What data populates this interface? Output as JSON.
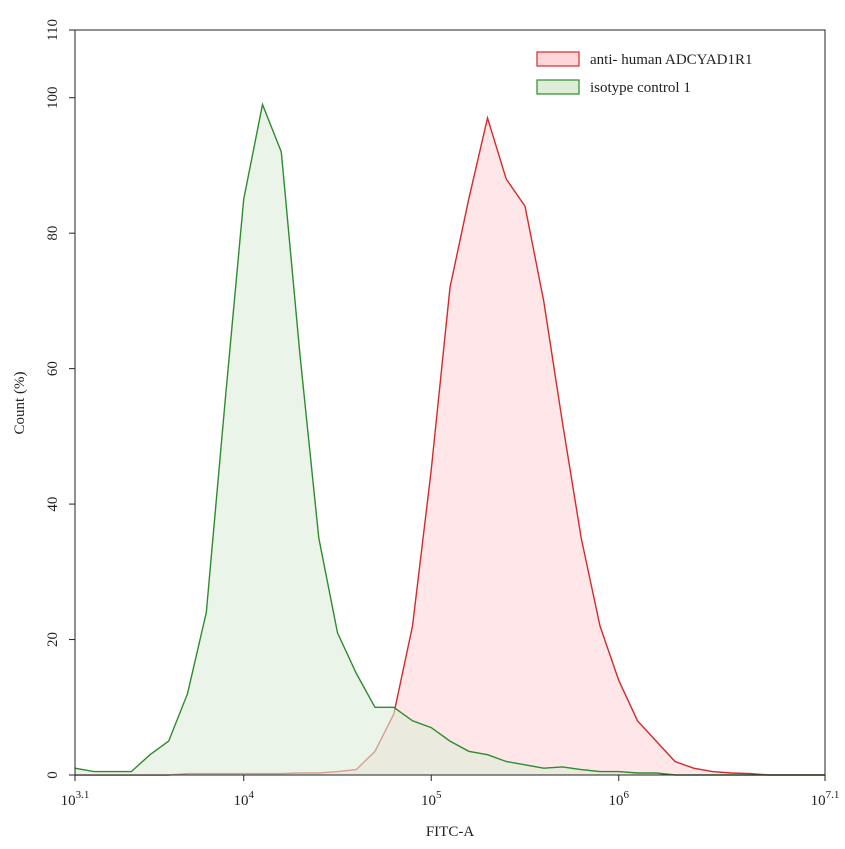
{
  "chart_data": {
    "type": "area",
    "x_label": "FITC-A",
    "y_label": "Count (%)",
    "xscale": "log",
    "xlim": [
      1258.93,
      12589254
    ],
    "xticks": [
      {
        "value": 1258.93,
        "label": "10^3.1"
      },
      {
        "value": 10000,
        "label": "10^4"
      },
      {
        "value": 100000,
        "label": "10^5"
      },
      {
        "value": 1000000,
        "label": "10^6"
      },
      {
        "value": 12589254,
        "label": "10^7.1"
      }
    ],
    "ylim": [
      0,
      110
    ],
    "yticks": [
      0,
      20,
      40,
      60,
      80,
      100,
      110
    ],
    "legend": "top-right",
    "x": [
      1259,
      1585,
      1995,
      2512,
      3162,
      3981,
      5012,
      6310,
      7943,
      10000,
      12589,
      15849,
      19953,
      25119,
      31623,
      39811,
      50119,
      63096,
      79433,
      100000,
      125893,
      158489,
      199526,
      251189,
      316228,
      398107,
      501187,
      630957,
      794328,
      1000000,
      1258925,
      1584893,
      1995262,
      2511886,
      3162278,
      3981072,
      5011872,
      6309573,
      7943282,
      10000000,
      12589254
    ],
    "series": [
      {
        "name": "anti- human ADCYAD1R1",
        "color": "#d42a2a",
        "fill": "#fdd6da",
        "values": [
          0,
          0,
          0,
          0,
          0,
          0,
          0.2,
          0.2,
          0.2,
          0.2,
          0.2,
          0.2,
          0.3,
          0.3,
          0.5,
          0.8,
          3.5,
          9,
          22,
          45,
          72,
          85,
          97,
          88,
          84,
          70,
          52,
          35,
          22,
          14,
          8,
          5,
          2,
          1,
          0.5,
          0.3,
          0.2,
          0,
          0,
          0,
          0
        ]
      },
      {
        "name": "isotype control 1",
        "color": "#2e8b2e",
        "fill": "#dcedd8",
        "values": [
          1,
          0.5,
          0.5,
          0.5,
          3,
          5,
          12,
          24,
          55,
          85,
          99,
          92,
          62,
          35,
          21,
          15,
          10,
          10,
          8,
          7,
          5,
          3.5,
          3,
          2,
          1.5,
          1,
          1.2,
          0.8,
          0.5,
          0.5,
          0.3,
          0.3,
          0,
          0,
          0,
          0,
          0,
          0,
          0,
          0,
          0
        ]
      }
    ]
  }
}
